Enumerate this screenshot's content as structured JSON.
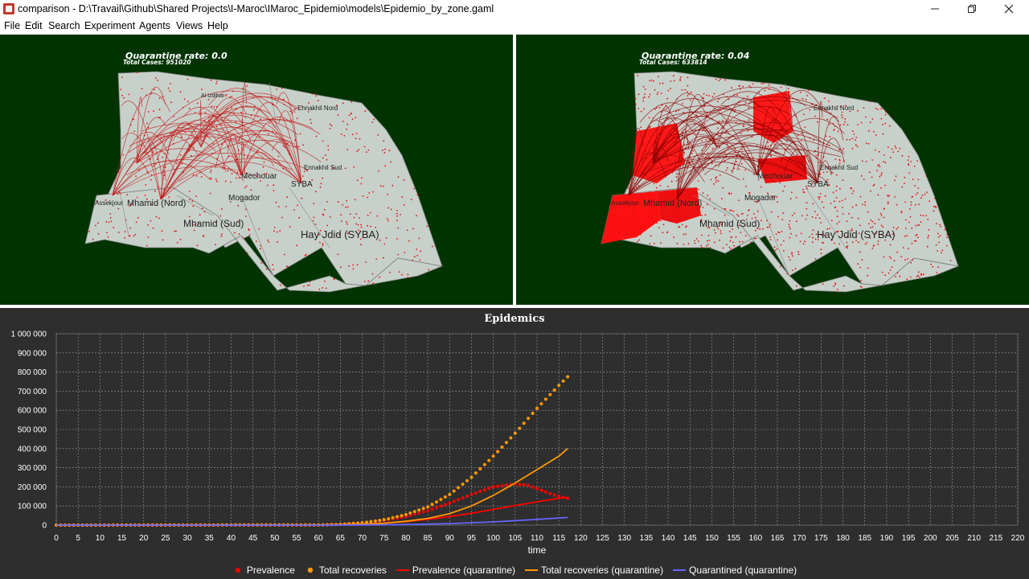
{
  "window": {
    "title": "comparison - D:\\Travail\\Github\\Shared Projects\\I-Maroc\\IMaroc_Epidemio\\models\\Epidemio_by_zone.gaml",
    "minimize_icon": "minimize-icon",
    "maximize_icon": "restore-icon",
    "close_icon": "close-icon"
  },
  "menu": [
    "File",
    "Edit",
    "Search",
    "Experiment",
    "Agents",
    "Views",
    "Help"
  ],
  "views": [
    {
      "quarantine_label": "Quarantine rate: 0.0",
      "cases_label": "Total Cases: 951020",
      "zones": [
        "Ennakhil Nord",
        "Al Izdihar",
        "SYBA",
        "Mechouar",
        "Mogador",
        "Mhamid (Nord)",
        "Mhamid (Sud)",
        "Hay Jdid (SYBA)",
        "Ennakhil Sud",
        "Assekjour"
      ]
    },
    {
      "quarantine_label": "Quarantine rate: 0.04",
      "cases_label": "Total Cases: 633814",
      "zones": [
        "Ennakhil Nord",
        "SYBA",
        "Mechouar",
        "Mogador",
        "Mhamid (Nord)",
        "Mhamid (Sud)",
        "Hay Jdid (SYBA)",
        "Ennakhil Sud",
        "Assekjour"
      ]
    }
  ],
  "chart_data": {
    "type": "line",
    "title": "Epidemics",
    "xlabel": "time",
    "ylabel": "",
    "xlim": [
      0,
      220
    ],
    "ylim": [
      0,
      1000000
    ],
    "x_ticks": [
      0,
      5,
      10,
      15,
      20,
      25,
      30,
      35,
      40,
      45,
      50,
      55,
      60,
      65,
      70,
      75,
      80,
      85,
      90,
      95,
      100,
      105,
      110,
      115,
      120,
      125,
      130,
      135,
      140,
      145,
      150,
      155,
      160,
      165,
      170,
      175,
      180,
      185,
      190,
      195,
      200,
      205,
      210,
      215,
      220
    ],
    "y_ticks": [
      {
        "value": 0,
        "label": "0"
      },
      {
        "value": 100000,
        "label": "100 000"
      },
      {
        "value": 200000,
        "label": "200 000"
      },
      {
        "value": 300000,
        "label": "300 000"
      },
      {
        "value": 400000,
        "label": "400 000"
      },
      {
        "value": 500000,
        "label": "500 000"
      },
      {
        "value": 600000,
        "label": "600 000"
      },
      {
        "value": 700000,
        "label": "700 000"
      },
      {
        "value": 800000,
        "label": "800 000"
      },
      {
        "value": 900000,
        "label": "900 000"
      },
      {
        "value": 1000000,
        "label": "1 000 000"
      }
    ],
    "grid": true,
    "legend_position": "bottom",
    "series": [
      {
        "name": "Prevalence",
        "style": "dots",
        "color": "#ff0000",
        "x": [
          0,
          60,
          65,
          70,
          75,
          80,
          85,
          90,
          95,
          100,
          105,
          108,
          110,
          113,
          115,
          117
        ],
        "y": [
          0,
          1000,
          4000,
          12000,
          25000,
          45000,
          75000,
          115000,
          160000,
          200000,
          215000,
          208000,
          190000,
          165000,
          150000,
          140000
        ]
      },
      {
        "name": "Total recoveries",
        "style": "dots",
        "color": "#ff9900",
        "x": [
          0,
          60,
          65,
          70,
          75,
          80,
          85,
          90,
          95,
          100,
          105,
          110,
          115,
          117
        ],
        "y": [
          0,
          1000,
          4000,
          12000,
          28000,
          55000,
          95000,
          160000,
          250000,
          360000,
          480000,
          610000,
          730000,
          775000
        ]
      },
      {
        "name": "Prevalence (quarantine)",
        "style": "line",
        "color": "#ff0000",
        "x": [
          0,
          60,
          65,
          70,
          75,
          80,
          85,
          90,
          95,
          100,
          105,
          110,
          115,
          117
        ],
        "y": [
          0,
          500,
          2000,
          5000,
          10000,
          18000,
          30000,
          45000,
          62000,
          82000,
          102000,
          122000,
          140000,
          145000
        ]
      },
      {
        "name": "Total recoveries (quarantine)",
        "style": "line",
        "color": "#ff9900",
        "x": [
          0,
          60,
          65,
          70,
          75,
          80,
          85,
          90,
          95,
          100,
          105,
          110,
          115,
          117
        ],
        "y": [
          0,
          500,
          2000,
          5000,
          10000,
          20000,
          35000,
          60000,
          100000,
          155000,
          220000,
          290000,
          360000,
          400000
        ]
      },
      {
        "name": "Quarantined (quarantine)",
        "style": "line",
        "color": "#6666ff",
        "x": [
          0,
          60,
          70,
          80,
          90,
          100,
          110,
          117
        ],
        "y": [
          0,
          0,
          1000,
          3000,
          8000,
          17000,
          30000,
          40000
        ]
      }
    ]
  }
}
